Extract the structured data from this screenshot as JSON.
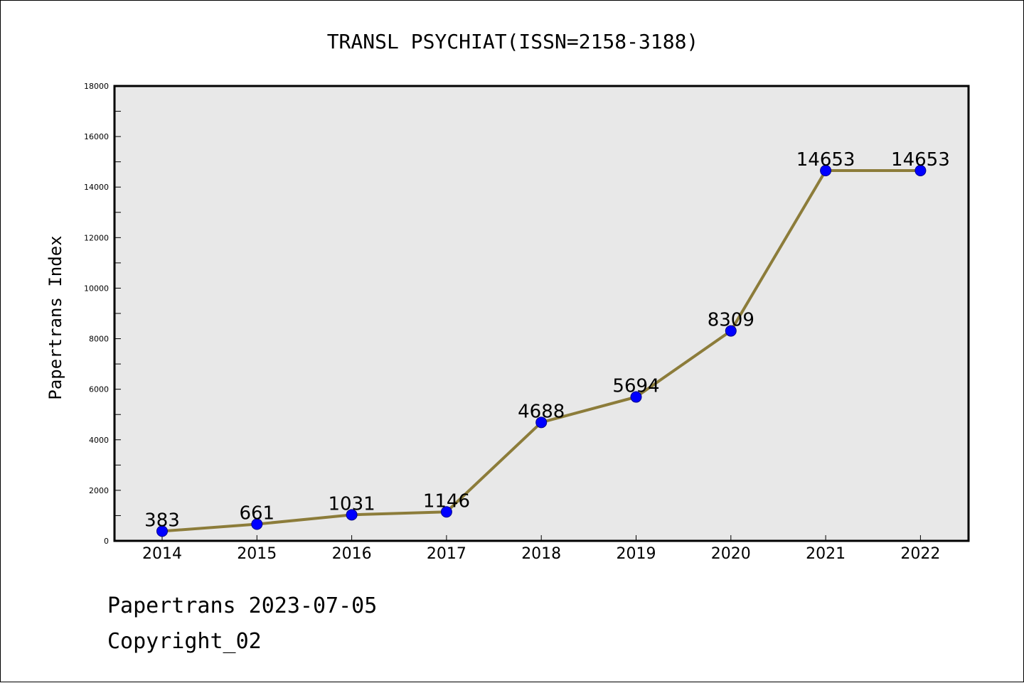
{
  "chart_data": {
    "type": "line",
    "title": "TRANSL PSYCHIAT(ISSN=2158-3188)",
    "xlabel": "",
    "ylabel": "Papertrans Index",
    "categories": [
      "2014",
      "2015",
      "2016",
      "2017",
      "2018",
      "2019",
      "2020",
      "2021",
      "2022"
    ],
    "series": [
      {
        "values": [
          383,
          661,
          1031,
          1146,
          4688,
          5694,
          8309,
          14653,
          14653
        ]
      }
    ],
    "ylim": [
      0,
      18000
    ],
    "yticks": [
      0,
      2000,
      4000,
      6000,
      8000,
      10000,
      12000,
      14000,
      16000,
      18000
    ],
    "grid": false,
    "legend": "none",
    "line_color": "#8c7c3a",
    "marker_color": "#0000ff",
    "plot_background": "#e8e8e8"
  },
  "footer": {
    "date_line": "Papertrans 2023-07-05",
    "copyright_line": "Copyright_02"
  }
}
